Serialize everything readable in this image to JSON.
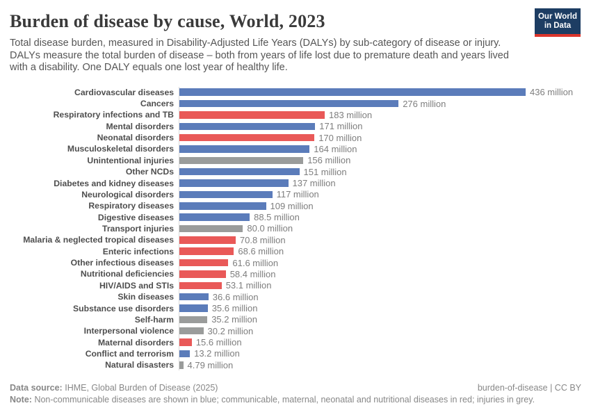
{
  "header": {
    "title": "Burden of disease by cause, World, 2023",
    "subtitle": "Total disease burden, measured in Disability-Adjusted Life Years (DALYs) by sub-category of disease or injury. DALYs measure the total burden of disease – both from years of life lost due to premature death and years lived with a disability. One DALY equals one lost year of healthy life.",
    "logo": {
      "line1": "Our World",
      "line2": "in Data",
      "bg_color": "#1d3d63",
      "accent_color": "#dc352c"
    }
  },
  "chart_data": {
    "type": "bar",
    "orientation": "horizontal",
    "title": "Burden of disease by cause, World, 2023",
    "unit": "million DALYs",
    "xlim": [
      0,
      436
    ],
    "grid": false,
    "legend": "none",
    "categories": [
      "Cardiovascular diseases",
      "Cancers",
      "Respiratory infections and TB",
      "Mental disorders",
      "Neonatal disorders",
      "Musculoskeletal disorders",
      "Unintentional injuries",
      "Other NCDs",
      "Diabetes and kidney diseases",
      "Neurological disorders",
      "Respiratory diseases",
      "Digestive diseases",
      "Transport injuries",
      "Malaria & neglected tropical diseases",
      "Enteric infections",
      "Other infectious diseases",
      "Nutritional deficiencies",
      "HIV/AIDS and STIs",
      "Skin diseases",
      "Substance use disorders",
      "Self-harm",
      "Interpersonal violence",
      "Maternal disorders",
      "Conflict and terrorism",
      "Natural disasters"
    ],
    "values": [
      436,
      276,
      183,
      171,
      170,
      164,
      156,
      151,
      137,
      117,
      109,
      88.5,
      80.0,
      70.8,
      68.6,
      61.6,
      58.4,
      53.1,
      36.6,
      35.6,
      35.2,
      30.2,
      15.6,
      13.2,
      4.79
    ],
    "value_labels": [
      "436 million",
      "276 million",
      "183 million",
      "171 million",
      "170 million",
      "164 million",
      "156 million",
      "151 million",
      "137 million",
      "117 million",
      "109 million",
      "88.5 million",
      "80.0 million",
      "70.8 million",
      "68.6 million",
      "61.6 million",
      "58.4 million",
      "53.1 million",
      "36.6 million",
      "35.6 million",
      "35.2 million",
      "30.2 million",
      "15.6 million",
      "13.2 million",
      "4.79 million"
    ],
    "bar_colors": [
      "blue",
      "blue",
      "red",
      "blue",
      "red",
      "blue",
      "grey",
      "blue",
      "blue",
      "blue",
      "blue",
      "blue",
      "grey",
      "red",
      "red",
      "red",
      "red",
      "red",
      "blue",
      "blue",
      "grey",
      "grey",
      "red",
      "blue",
      "grey"
    ],
    "palette": {
      "blue": "#5b7cba",
      "red": "#e95958",
      "grey": "#9a9c9b"
    },
    "color_meaning": {
      "blue": "Non-communicable diseases",
      "red": "Communicable, maternal, neonatal and nutritional diseases",
      "grey": "Injuries"
    }
  },
  "footer": {
    "data_source_label": "Data source:",
    "data_source": "IHME, Global Burden of Disease (2025)",
    "permalink": "burden-of-disease | CC BY",
    "note_label": "Note:",
    "note": "Non-communicable diseases are shown in blue; communicable, maternal, neonatal and nutritional diseases in red; injuries in grey."
  }
}
